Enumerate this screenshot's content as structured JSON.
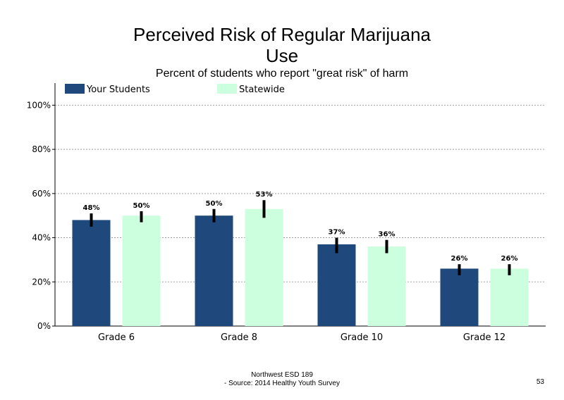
{
  "chart_data": {
    "type": "bar",
    "title_line1": "Perceived Risk of Regular Marijuana",
    "title_line2": "Use",
    "subtitle": "Percent of students who report \"great risk\" of harm",
    "categories": [
      "Grade 6",
      "Grade 8",
      "Grade 10",
      "Grade 12"
    ],
    "series": [
      {
        "name": "Your Students",
        "color": "#1f497d",
        "values": [
          48,
          50,
          37,
          26
        ],
        "labels": [
          "48%",
          "50%",
          "37%",
          "26%"
        ],
        "error_low": [
          45,
          47,
          33,
          23
        ],
        "error_high": [
          51,
          53,
          40,
          28
        ]
      },
      {
        "name": "Statewide",
        "color": "#ccffdd",
        "values": [
          50,
          53,
          36,
          26
        ],
        "labels": [
          "50%",
          "53%",
          "36%",
          "26%"
        ],
        "error_low": [
          47,
          49,
          33,
          23
        ],
        "error_high": [
          52,
          57,
          39,
          28
        ]
      }
    ],
    "y_ticks": [
      0,
      20,
      40,
      60,
      80,
      100
    ],
    "y_tick_labels": [
      "0%",
      "20%",
      "40%",
      "60%",
      "80%",
      "100%"
    ],
    "ylim": [
      0,
      110
    ],
    "grid": true,
    "legend_position": "top-left"
  },
  "footer": {
    "line1": "Northwest ESD  189",
    "line2": "- Source: 2014 Healthy  Youth Survey",
    "page_number": "53"
  }
}
